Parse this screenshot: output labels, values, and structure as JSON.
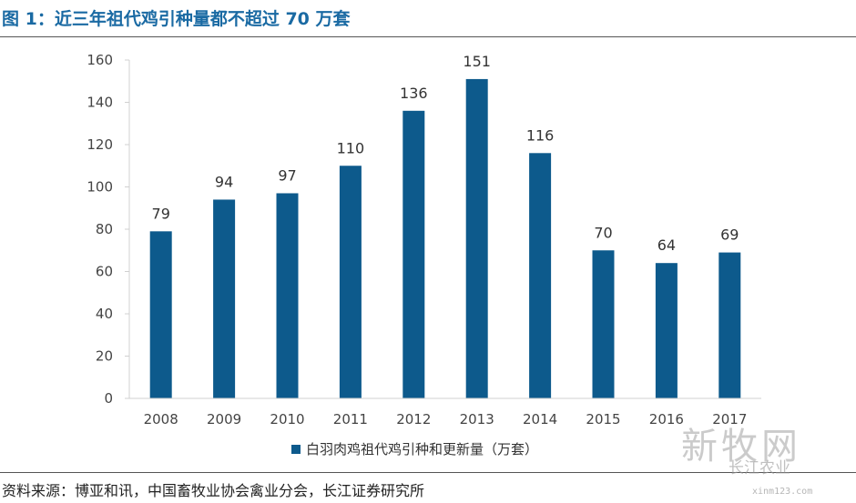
{
  "figure": {
    "title": "图 1：近三年祖代鸡引种量都不超过 70 万套",
    "source": "资料来源：博亚和讯，中国畜牧业协会禽业分会，长江证券研究所"
  },
  "watermark": {
    "main": "新牧网",
    "sub": "长江农业",
    "url": "xinm123.com"
  },
  "chart_data": {
    "type": "bar",
    "title": "",
    "xlabel": "",
    "ylabel": "",
    "categories": [
      "2008",
      "2009",
      "2010",
      "2011",
      "2012",
      "2013",
      "2014",
      "2015",
      "2016",
      "2017"
    ],
    "series": [
      {
        "name": "白羽肉鸡祖代鸡引种和更新量（万套）",
        "values": [
          79,
          94,
          97,
          110,
          136,
          151,
          116,
          70,
          64,
          69
        ]
      }
    ],
    "ylim": [
      0,
      160
    ],
    "yticks": [
      0,
      20,
      40,
      60,
      80,
      100,
      120,
      140,
      160
    ],
    "grid": false,
    "data_labels": true,
    "legend_position": "bottom",
    "bar_color": "#0d5a8c",
    "axis_color": "#d0d0d0"
  }
}
